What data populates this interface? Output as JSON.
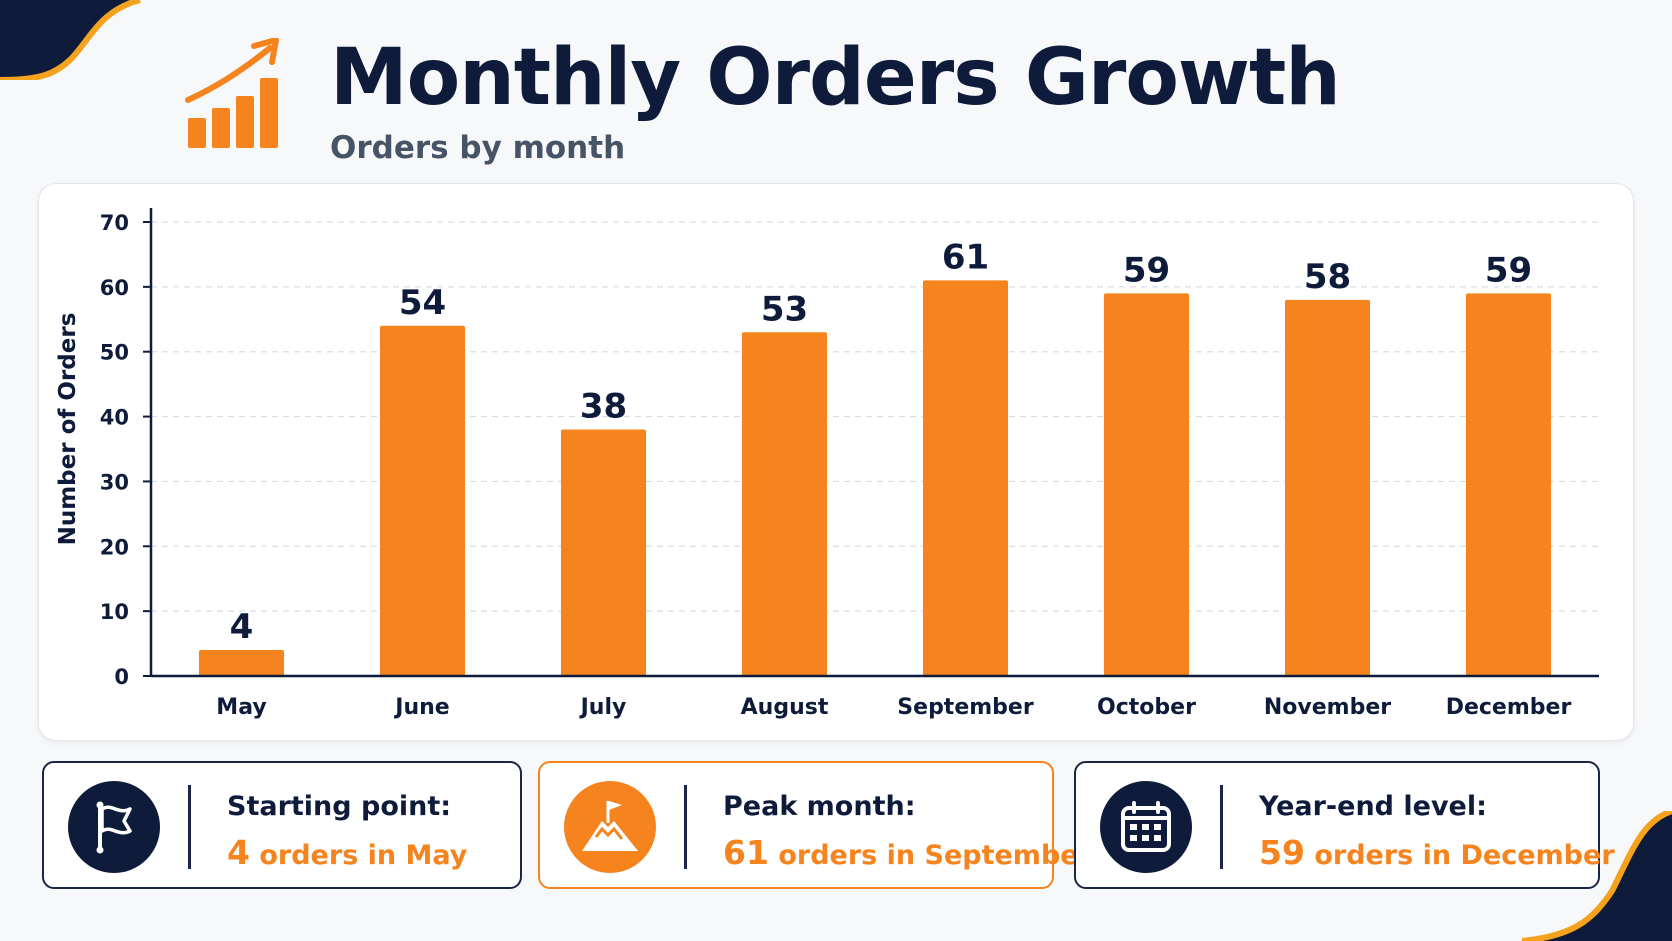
{
  "header": {
    "title": "Monthly Orders Growth",
    "subtitle": "Orders by month",
    "icon": "bar-chart-growth-icon"
  },
  "colors": {
    "accent": "#f5841f",
    "navy": "#0f1b3a",
    "background": "#f7f8fa"
  },
  "chart_data": {
    "type": "bar",
    "categories": [
      "May",
      "June",
      "July",
      "August",
      "September",
      "October",
      "November",
      "December"
    ],
    "values": [
      4,
      54,
      38,
      53,
      61,
      59,
      58,
      59
    ],
    "title": "Monthly Orders Growth",
    "subtitle": "Orders by month",
    "xlabel": "",
    "ylabel": "Number of Orders",
    "ylim": [
      0,
      70
    ],
    "yticks": [
      0,
      10,
      20,
      30,
      40,
      50,
      60,
      70
    ],
    "grid": true,
    "data_labels": true,
    "bar_color": "#f5841f"
  },
  "stats": [
    {
      "label": "Starting point:",
      "value": "4",
      "suffix": " orders in May",
      "icon": "flag-icon"
    },
    {
      "label": "Peak month:",
      "value": "61",
      "suffix": " orders in September",
      "icon": "mountain-peak-flag-icon"
    },
    {
      "label": "Year-end level:",
      "value": "59",
      "suffix": " orders in December",
      "icon": "calendar-icon"
    }
  ]
}
